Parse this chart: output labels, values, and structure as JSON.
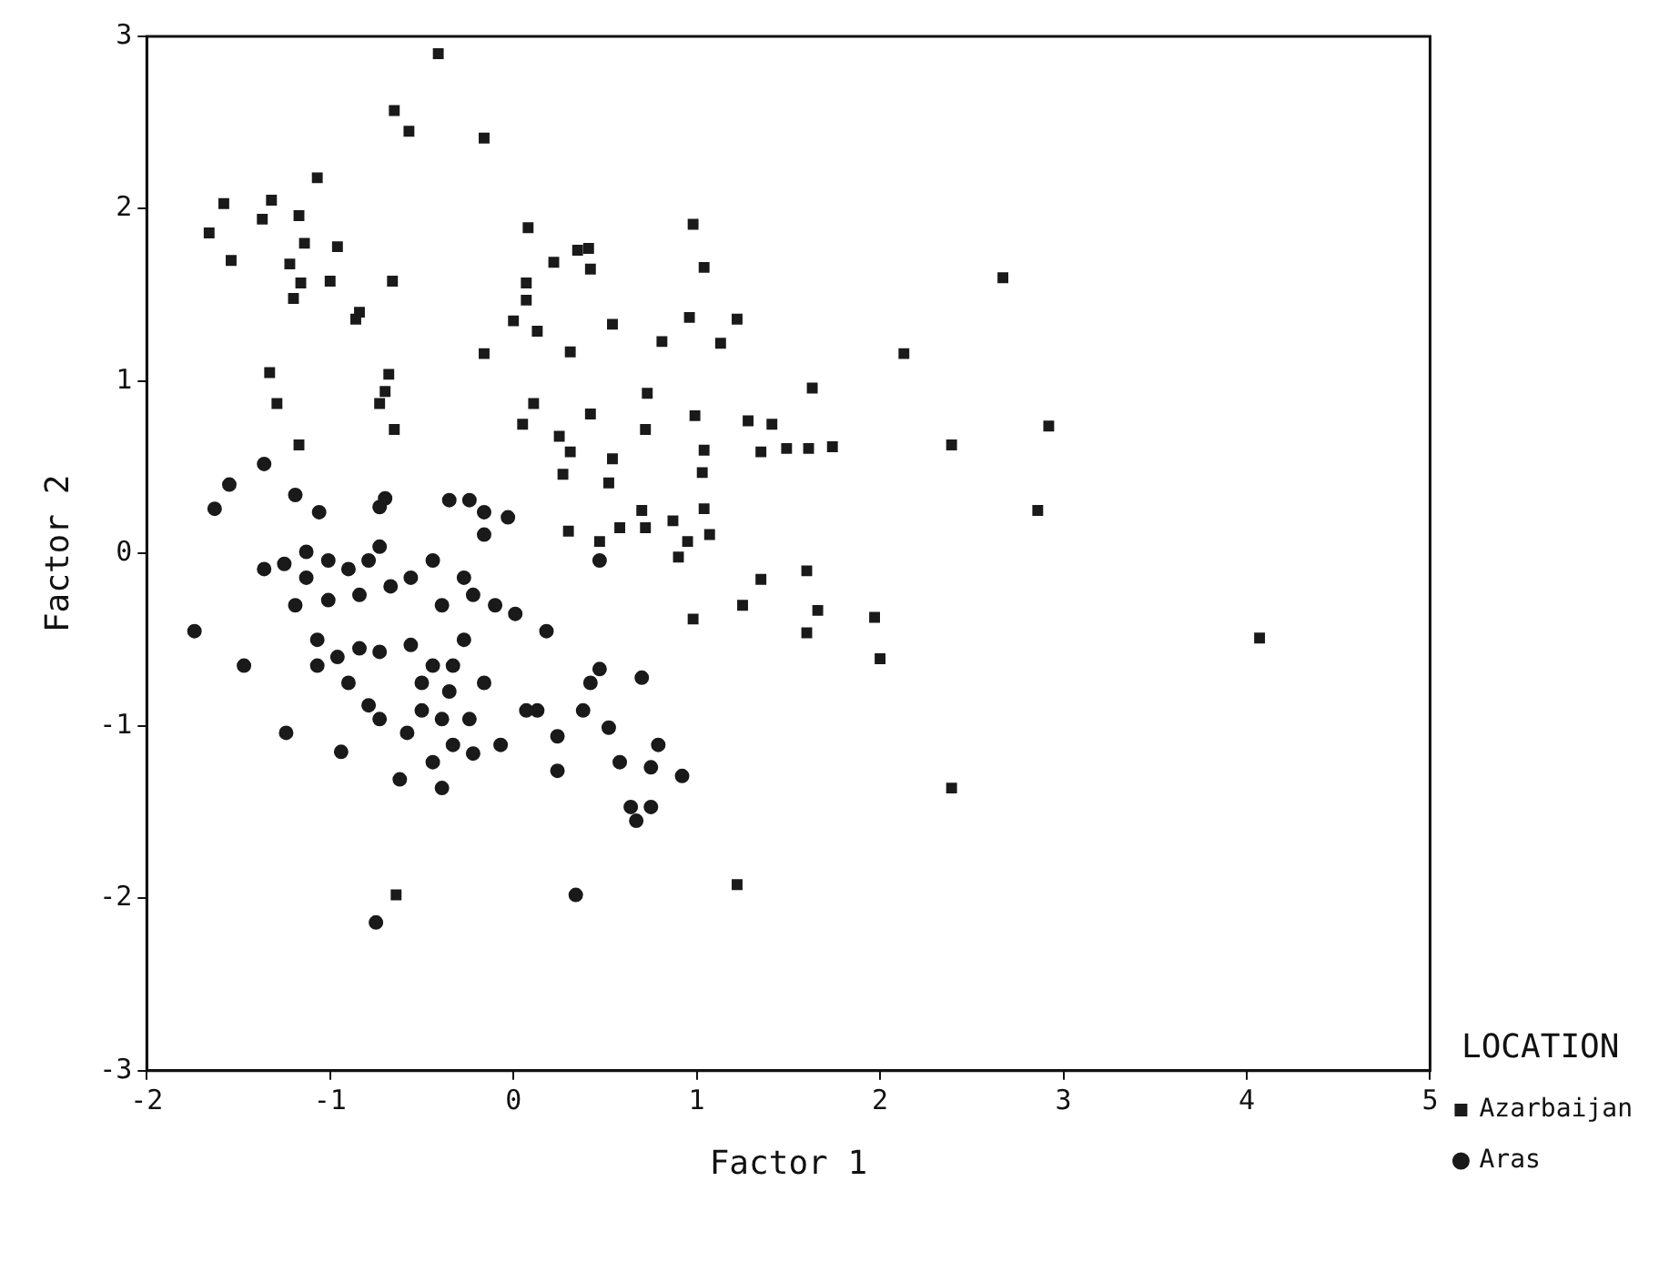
{
  "chart_data": {
    "type": "scatter",
    "xlabel": "Factor 1",
    "ylabel": "Factor 2",
    "legend_title": "LOCATION",
    "legend": "right",
    "grid": false,
    "xlim": [
      -2,
      5
    ],
    "xticks": [
      -2,
      -1,
      0,
      1,
      2,
      3,
      4,
      5
    ],
    "ylim": [
      -3,
      3
    ],
    "yticks": [
      -3,
      -2,
      -1,
      0,
      1,
      2,
      3
    ],
    "series": [
      {
        "name": "Azarbaijan",
        "color": "#1a1a1a",
        "marker": "square",
        "x": [
          -0.41,
          -0.65,
          -0.57,
          -0.16,
          -1.07,
          -1.58,
          -1.66,
          -1.32,
          -1.37,
          -1.17,
          -1.14,
          -0.96,
          -1.22,
          -1.54,
          -1.0,
          -1.16,
          -1.2,
          -0.66,
          -0.84,
          -0.86,
          0.08,
          0.35,
          0.42,
          0.41,
          0.22,
          0.07,
          0.07,
          0.0,
          0.13,
          -0.16,
          0.31,
          0.54,
          0.81,
          0.96,
          1.13,
          0.98,
          1.04,
          1.22,
          -1.33,
          -1.29,
          -0.68,
          -0.73,
          -1.17,
          -0.65,
          -0.7,
          0.11,
          0.05,
          0.42,
          0.25,
          0.31,
          0.73,
          0.72,
          0.54,
          0.27,
          0.52,
          0.99,
          1.04,
          1.03,
          1.28,
          1.35,
          1.49,
          1.61,
          1.74,
          1.41,
          1.63,
          2.13,
          2.67,
          2.92,
          2.39,
          2.86,
          0.3,
          0.47,
          0.58,
          0.72,
          0.7,
          0.87,
          0.95,
          0.9,
          1.07,
          1.04,
          1.6,
          1.66,
          1.6,
          1.97,
          2.0,
          2.39,
          4.07,
          1.35,
          1.25,
          0.98,
          1.22,
          -0.64
        ],
        "values": [
          2.9,
          2.57,
          2.45,
          2.41,
          2.18,
          2.03,
          1.86,
          2.05,
          1.94,
          1.96,
          1.8,
          1.78,
          1.68,
          1.7,
          1.58,
          1.57,
          1.48,
          1.58,
          1.4,
          1.36,
          1.89,
          1.76,
          1.65,
          1.77,
          1.69,
          1.57,
          1.47,
          1.35,
          1.29,
          1.16,
          1.17,
          1.33,
          1.23,
          1.37,
          1.22,
          1.91,
          1.66,
          1.36,
          1.05,
          0.87,
          1.04,
          0.87,
          0.63,
          0.72,
          0.94,
          0.87,
          0.75,
          0.81,
          0.68,
          0.59,
          0.93,
          0.72,
          0.55,
          0.46,
          0.41,
          0.8,
          0.6,
          0.47,
          0.77,
          0.59,
          0.61,
          0.61,
          0.62,
          0.75,
          0.96,
          1.16,
          1.6,
          0.74,
          0.63,
          0.25,
          0.13,
          0.07,
          0.15,
          0.15,
          0.25,
          0.19,
          0.07,
          -0.02,
          0.11,
          0.26,
          -0.1,
          -0.33,
          -0.46,
          -0.37,
          -0.61,
          -1.36,
          -0.49,
          -0.15,
          -0.3,
          -0.38,
          -1.92,
          -1.98
        ]
      },
      {
        "name": "Aras",
        "color": "#1a1a1a",
        "marker": "circle",
        "x": [
          -1.36,
          -1.55,
          -1.63,
          -1.19,
          -1.06,
          -0.73,
          -0.7,
          -0.35,
          -0.24,
          -0.16,
          -0.03,
          -1.74,
          -1.47,
          -1.24,
          -0.94,
          -0.75,
          0.34,
          -1.36,
          -1.25,
          -1.13,
          -1.13,
          -1.01,
          -0.9,
          -0.79,
          -1.19,
          -1.01,
          -0.84,
          -0.67,
          -1.07,
          -0.96,
          -1.07,
          -0.84,
          -0.73,
          -0.9,
          -0.79,
          -0.73,
          -0.56,
          -0.44,
          -0.5,
          -0.33,
          -0.35,
          -0.27,
          -0.16,
          -0.5,
          -0.39,
          -0.24,
          -0.58,
          -0.33,
          -0.22,
          -0.44,
          -0.62,
          -0.39,
          -0.07,
          0.07,
          0.13,
          0.24,
          0.24,
          0.38,
          0.42,
          0.47,
          0.52,
          0.58,
          0.64,
          0.67,
          0.75,
          0.75,
          0.79,
          0.92,
          0.7,
          -0.39,
          -0.27,
          -0.22,
          -0.1,
          0.01,
          0.18,
          -0.56,
          -0.44,
          -0.73,
          -0.16,
          0.47
        ],
        "values": [
          0.52,
          0.4,
          0.26,
          0.34,
          0.24,
          0.27,
          0.32,
          0.31,
          0.31,
          0.24,
          0.21,
          -0.45,
          -0.65,
          -1.04,
          -1.15,
          -2.14,
          -1.98,
          -0.09,
          -0.06,
          0.01,
          -0.14,
          -0.04,
          -0.09,
          -0.04,
          -0.3,
          -0.27,
          -0.24,
          -0.19,
          -0.5,
          -0.6,
          -0.65,
          -0.55,
          -0.57,
          -0.75,
          -0.88,
          -0.96,
          -0.53,
          -0.65,
          -0.75,
          -0.65,
          -0.8,
          -0.5,
          -0.75,
          -0.91,
          -0.96,
          -0.96,
          -1.04,
          -1.11,
          -1.16,
          -1.21,
          -1.31,
          -1.36,
          -1.11,
          -0.91,
          -0.91,
          -1.06,
          -1.26,
          -0.91,
          -0.75,
          -0.67,
          -1.01,
          -1.21,
          -1.47,
          -1.55,
          -1.47,
          -1.24,
          -1.11,
          -1.29,
          -0.72,
          -0.3,
          -0.14,
          -0.24,
          -0.3,
          -0.35,
          -0.45,
          -0.14,
          -0.04,
          0.04,
          0.11,
          -0.04
        ]
      }
    ]
  }
}
